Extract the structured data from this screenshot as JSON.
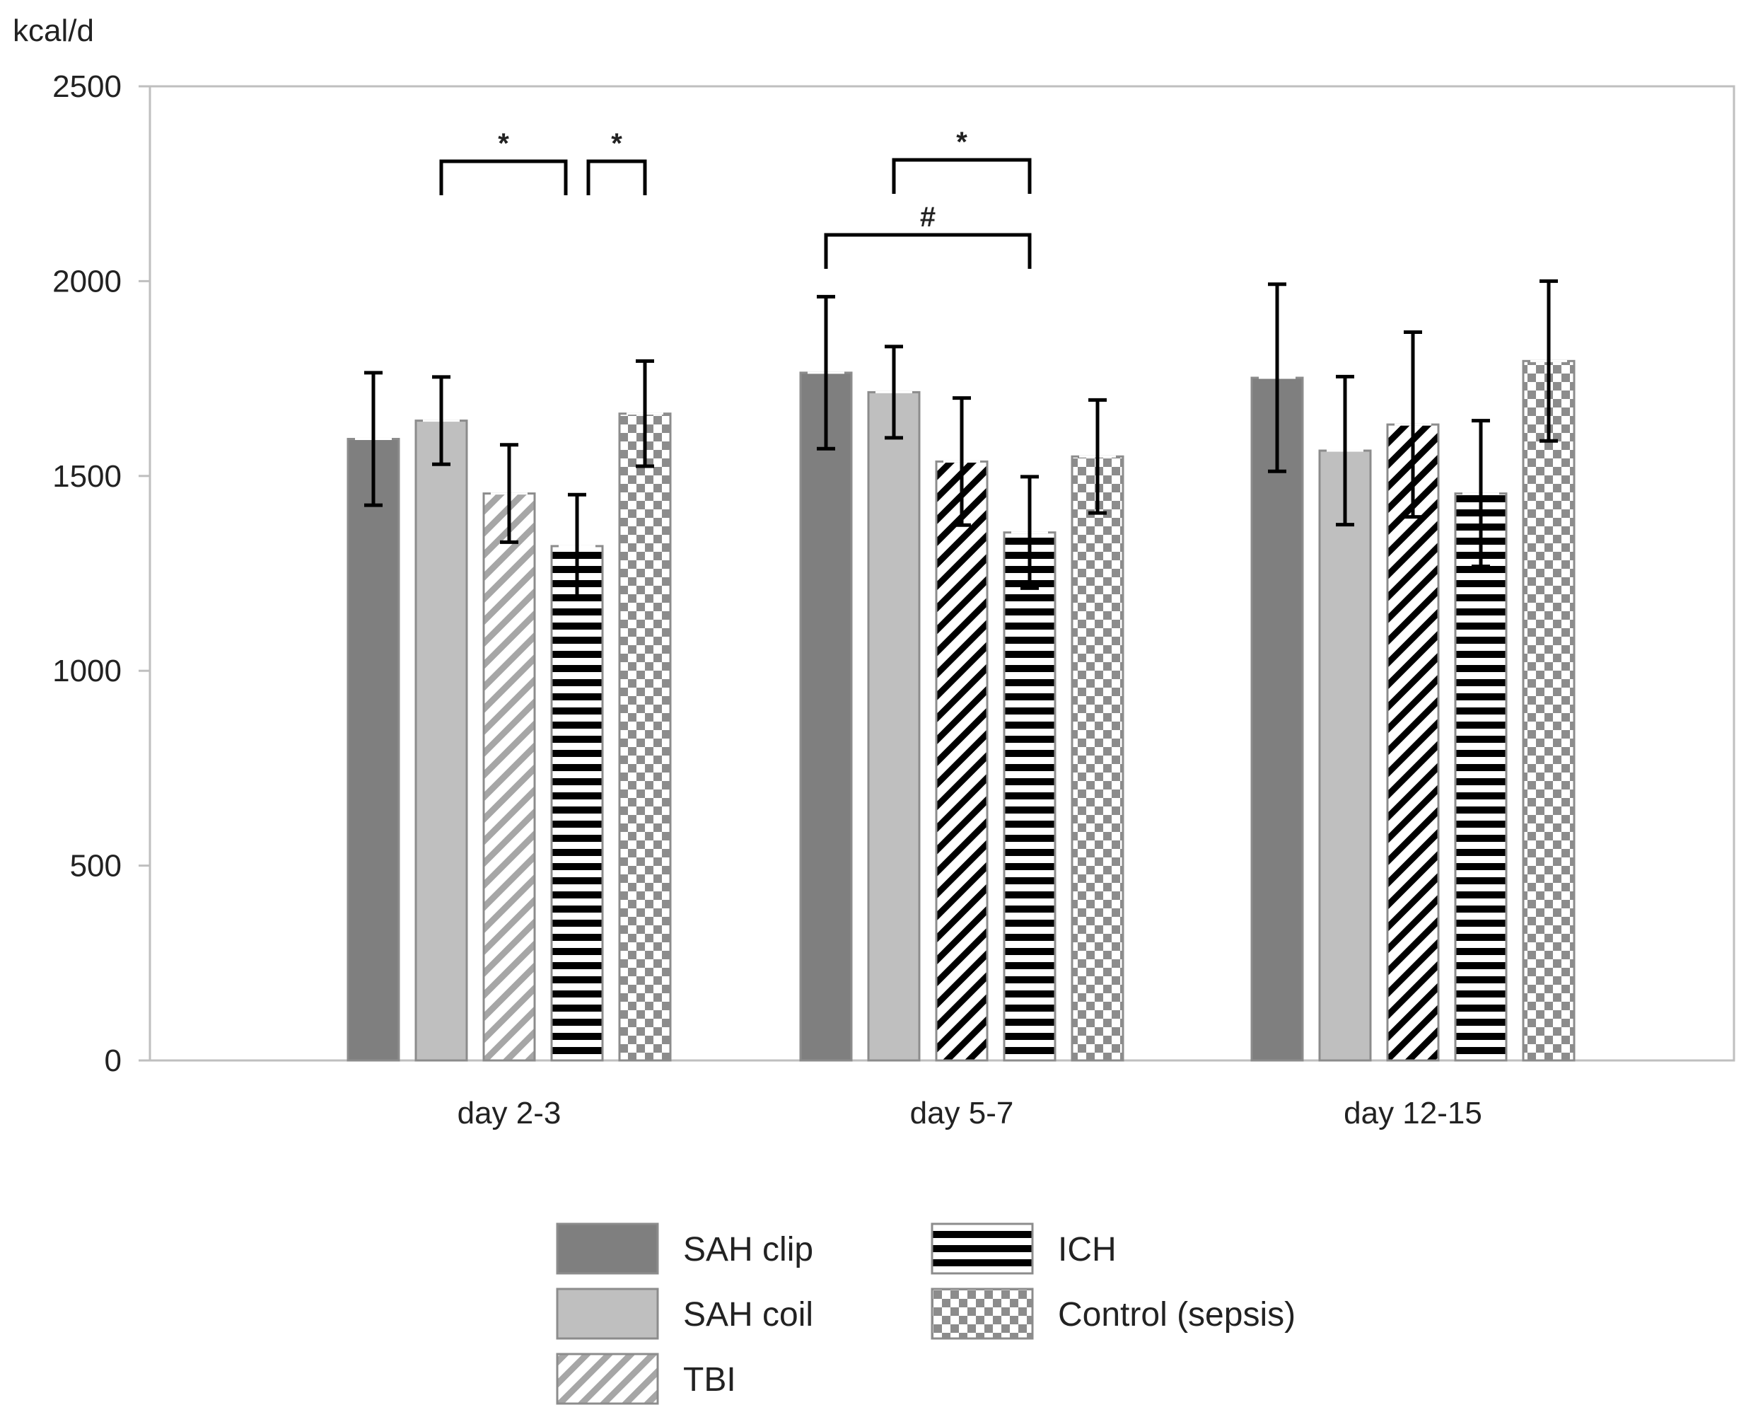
{
  "chart_data": {
    "type": "bar",
    "ylabel": "kcal/d",
    "ylim": [
      0,
      2500
    ],
    "yticks": [
      0,
      500,
      1000,
      1500,
      2000,
      2500
    ],
    "grid": false,
    "categories": [
      "day 2-3",
      "day 5-7",
      "day 12-15"
    ],
    "series": [
      {
        "name": "SAH clip",
        "pattern": "solid-dark",
        "color": "#7f7f7f",
        "values": [
          1595,
          1765,
          1752
        ],
        "errors": [
          170,
          195,
          240
        ]
      },
      {
        "name": "SAH coil",
        "pattern": "solid-light",
        "color": "#bfbfbf",
        "values": [
          1642,
          1715,
          1565
        ],
        "errors": [
          112,
          117,
          190
        ]
      },
      {
        "name": "TBI",
        "pattern": "diagonal-stripes",
        "color": "#000000",
        "values": [
          1455,
          1537,
          1632
        ],
        "errors": [
          125,
          163,
          237
        ]
      },
      {
        "name": "ICH",
        "pattern": "horizontal-stripes",
        "color": "#000000",
        "values": [
          1320,
          1355,
          1455
        ],
        "errors": [
          132,
          143,
          187
        ]
      },
      {
        "name": "Control (sepsis)",
        "pattern": "checkerboard",
        "color": "#7f7f7f",
        "values": [
          1660,
          1550,
          1795
        ],
        "errors": [
          135,
          145,
          205
        ]
      }
    ],
    "annotations": [
      {
        "label": "*",
        "category": "day 2-3",
        "from_series": "SAH coil",
        "to_series": "ICH"
      },
      {
        "label": "*",
        "category": "day 2-3",
        "from_series": "ICH",
        "to_series": "Control (sepsis)"
      },
      {
        "label": "*",
        "category": "day 5-7",
        "from_series": "SAH coil",
        "to_series": "ICH"
      },
      {
        "label": "#",
        "category": "day 5-7",
        "from_series": "SAH clip",
        "to_series": "ICH"
      }
    ],
    "legend_position": "bottom"
  }
}
